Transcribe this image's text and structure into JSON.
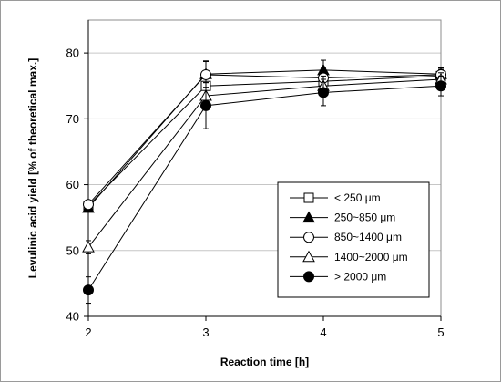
{
  "chart_data": {
    "type": "line",
    "xlabel": "Reaction time [h]",
    "ylabel": "Levulinic acid yield [% of theoretical max.]",
    "x": [
      2,
      3,
      4,
      5
    ],
    "xlim": [
      2,
      5
    ],
    "ylim": [
      40,
      85
    ],
    "x_ticks": [
      "2",
      "3",
      "4",
      "5"
    ],
    "y_ticks": [
      "40",
      "50",
      "60",
      "70",
      "80"
    ],
    "grid": "horizontal",
    "legend_position": "right-center",
    "series": [
      {
        "name": "< 250  μm",
        "marker": "square-open",
        "values": [
          56.8,
          75.0,
          75.7,
          76.5
        ],
        "errors": [
          0.0,
          1.8,
          1.5,
          1.0
        ]
      },
      {
        "name": "250~850  μm",
        "marker": "triangle-filled",
        "values": [
          56.5,
          76.8,
          77.4,
          76.8
        ],
        "errors": [
          0.0,
          2.0,
          1.5,
          1.0
        ]
      },
      {
        "name": "850~1400 μm",
        "marker": "circle-open",
        "values": [
          57.0,
          76.7,
          76.2,
          76.7
        ],
        "errors": [
          0.0,
          2.0,
          1.6,
          1.0
        ]
      },
      {
        "name": "1400~2000 μm",
        "marker": "triangle-open",
        "values": [
          50.5,
          73.5,
          75.0,
          76.0
        ],
        "errors": [
          1.0,
          2.0,
          1.5,
          1.0
        ]
      },
      {
        "name": "> 2000  μm",
        "marker": "circle-filled",
        "values": [
          44.0,
          72.0,
          74.0,
          75.0
        ],
        "errors": [
          2.0,
          3.5,
          2.0,
          1.5
        ]
      }
    ]
  }
}
